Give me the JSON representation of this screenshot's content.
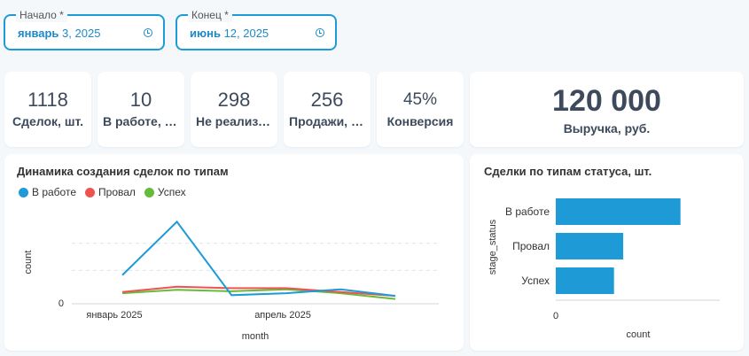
{
  "filters": {
    "start": {
      "label": "Начало *",
      "month": "январь",
      "date": "3, 2025"
    },
    "end": {
      "label": "Конец *",
      "month": "июнь",
      "date": "12, 2025"
    }
  },
  "kpis": [
    {
      "value": "1118",
      "label": "Сделок, шт."
    },
    {
      "value": "10",
      "label": "В работе, шт."
    },
    {
      "value": "298",
      "label": "Не реализовано, шт."
    },
    {
      "value": "256",
      "label": "Продажи, шт."
    },
    {
      "value": "45%",
      "label": "Конверсия"
    },
    {
      "value": "120 000",
      "label": "Выручка, руб."
    }
  ],
  "colors": {
    "accent": "#1e9bd7",
    "in_work": "#1e9bd7",
    "fail": "#ef5350",
    "success": "#66bb3a"
  },
  "line_panel": {
    "title": "Динамика создания сделок по типам",
    "legend": [
      {
        "name": "В работе",
        "color": "#1e9bd7"
      },
      {
        "name": "Провал",
        "color": "#ef5350"
      },
      {
        "name": "Успех",
        "color": "#66bb3a"
      }
    ]
  },
  "bar_panel": {
    "title": "Сделки по типам статуса, шт."
  },
  "chart_data": [
    {
      "type": "line",
      "title": "Динамика создания сделок по типам",
      "xlabel": "month",
      "ylabel": "count",
      "x": [
        "2025-01",
        "2025-02",
        "2025-03",
        "2025-04",
        "2025-05",
        "2025-06"
      ],
      "xticks": [
        "январь 2025",
        "апрель 2025"
      ],
      "yticks": [
        "0"
      ],
      "ylim": [
        0,
        220
      ],
      "legend": "top-left",
      "grid": true,
      "series": [
        {
          "name": "В работе",
          "color": "#1e9bd7",
          "values": [
            72,
            210,
            20,
            25,
            35,
            18
          ]
        },
        {
          "name": "Провал",
          "color": "#ef5350",
          "values": [
            28,
            42,
            38,
            38,
            28,
            18
          ]
        },
        {
          "name": "Успех",
          "color": "#66bb3a",
          "values": [
            25,
            34,
            30,
            35,
            25,
            10
          ]
        }
      ]
    },
    {
      "type": "bar",
      "orientation": "horizontal",
      "title": "Сделки по типам статуса, шт.",
      "xlabel": "count",
      "ylabel": "stage_status",
      "categories": [
        "В работе",
        "Провал",
        "Успех"
      ],
      "values": [
        540,
        292,
        252
      ],
      "xticks": [
        "0"
      ],
      "xlim": [
        0,
        710
      ],
      "color": "#1e9bd7"
    }
  ]
}
